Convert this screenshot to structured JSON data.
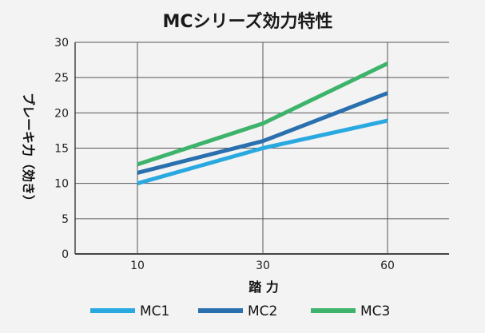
{
  "chart_data": {
    "type": "line",
    "title": "MCシリーズ効力特性",
    "xlabel": "踏 力",
    "ylabel": "ブレーキ力（効き）",
    "categories": [
      "10",
      "30",
      "60"
    ],
    "ylim": [
      0,
      30
    ],
    "yticks": [
      "0",
      "5",
      "10",
      "15",
      "20",
      "25",
      "30"
    ],
    "grid": true,
    "legend_position": "bottom",
    "series": [
      {
        "name": "MC1",
        "color": "#2aa9e0",
        "values": [
          10,
          15,
          18.9
        ]
      },
      {
        "name": "MC2",
        "color": "#2a6fae",
        "values": [
          11.5,
          16,
          22.8
        ]
      },
      {
        "name": "MC3",
        "color": "#3db36b",
        "values": [
          12.7,
          18.5,
          27
        ]
      }
    ]
  }
}
